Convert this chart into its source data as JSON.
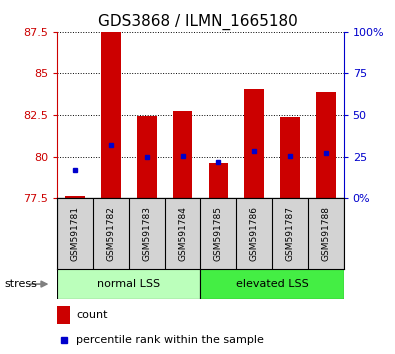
{
  "title": "GDS3868 / ILMN_1665180",
  "samples": [
    "GSM591781",
    "GSM591782",
    "GSM591783",
    "GSM591784",
    "GSM591785",
    "GSM591786",
    "GSM591787",
    "GSM591788"
  ],
  "bar_bottoms": [
    77.5,
    77.5,
    77.5,
    77.5,
    77.5,
    77.5,
    77.5,
    77.5
  ],
  "bar_tops": [
    77.62,
    87.5,
    82.45,
    82.75,
    79.62,
    84.05,
    82.4,
    83.9
  ],
  "percentile_values": [
    79.2,
    80.7,
    80.0,
    80.02,
    79.65,
    80.32,
    80.02,
    80.22
  ],
  "ylim_left": [
    77.5,
    87.5
  ],
  "ylim_right": [
    0,
    100
  ],
  "yticks_left": [
    77.5,
    80.0,
    82.5,
    85.0,
    87.5
  ],
  "yticks_right": [
    0,
    25,
    50,
    75,
    100
  ],
  "ytick_labels_left": [
    "77.5",
    "80",
    "82.5",
    "85",
    "87.5"
  ],
  "ytick_labels_right": [
    "0%",
    "25",
    "50",
    "75",
    "100%"
  ],
  "bar_color": "#cc0000",
  "dot_color": "#0000cc",
  "group1_label": "normal LSS",
  "group2_label": "elevated LSS",
  "group1_color": "#bbffbb",
  "group2_color": "#44ee44",
  "group_border_color": "#000000",
  "stress_label": "stress",
  "legend_count_label": "count",
  "legend_pct_label": "percentile rank within the sample",
  "title_fontsize": 11,
  "tick_fontsize": 8,
  "sample_fontsize": 6.5,
  "group_fontsize": 8,
  "legend_fontsize": 8,
  "bg_color": "#d3d3d3",
  "plot_bg": "#ffffff"
}
